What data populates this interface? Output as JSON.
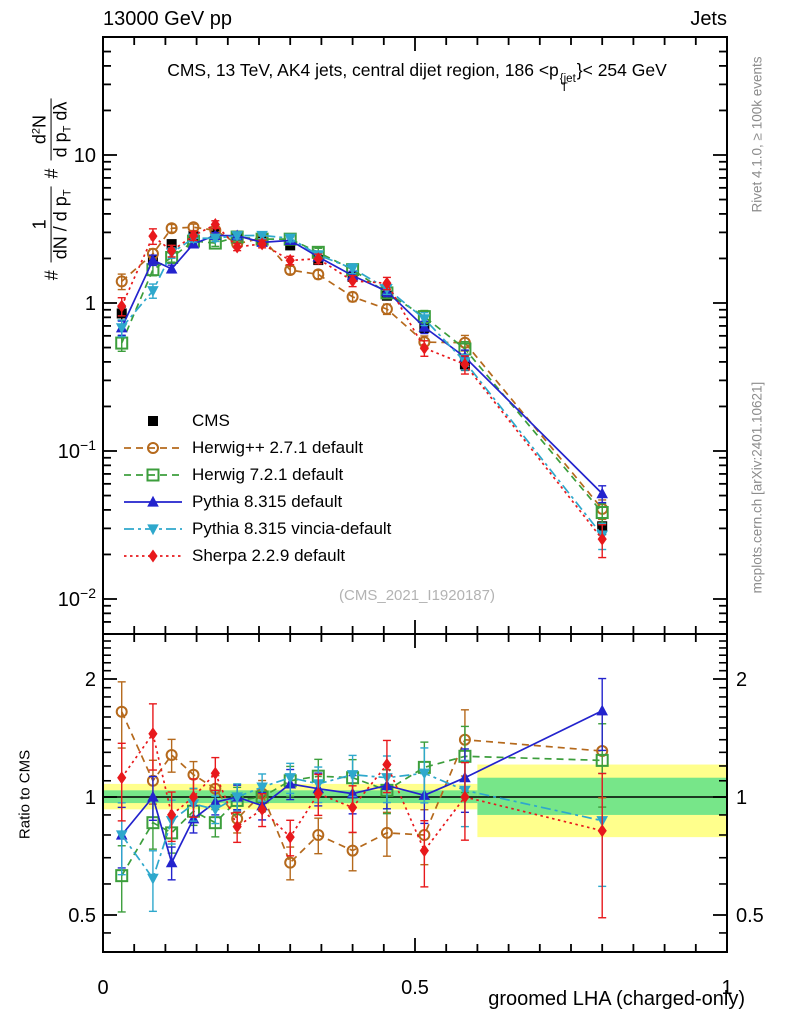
{
  "header": {
    "beam": "13000 GeV pp",
    "process": "Jets"
  },
  "title": {
    "pre": "CMS, 13 TeV, AK4 jets, central dijet region, 186 <p",
    "sup": "{jet",
    "sub": "T",
    "post": "}< 254 GeV"
  },
  "ylabel": {
    "hash1": "#",
    "f1num": "1",
    "f1den": "dN / d p",
    "f1den_sub": "T",
    "hash2": "#",
    "f2num_a": "d",
    "f2num_sup": "2",
    "f2num_b": "N",
    "f2den_a": "d p",
    "f2den_sub": "T",
    "f2den_b": " dλ"
  },
  "labels": {
    "ratio": "Ratio to CMS",
    "x": "groomed LHA (charged-only)",
    "watermark": "(CMS_2021_I1920187)"
  },
  "side": {
    "rivet": "Rivet 4.1.0, ≥ 100k events",
    "mcplots": "mcplots.cern.ch [arXiv:2401.10621]"
  },
  "chart_data": {
    "type": "line",
    "title": "CMS, 13 TeV, AK4 jets, central dijet region, 186 <p_T^{jet}< 254 GeV",
    "xlabel": "groomed LHA (charged-only)",
    "ylabel_main": "# 1/(dN/dp_T) # d^2N/(dp_T dlambda)",
    "ylabel_ratio": "Ratio to CMS",
    "x_range": [
      0,
      1
    ],
    "y_range_main_log": [
      0.006,
      60
    ],
    "y_range_ratio_log": [
      0.4,
      2.6
    ],
    "legend_position": "mid-left",
    "grid": false,
    "x": [
      0.03,
      0.08,
      0.11,
      0.145,
      0.18,
      0.215,
      0.255,
      0.3,
      0.345,
      0.4,
      0.455,
      0.515,
      0.58,
      0.8
    ],
    "axes": {
      "x_ticks": [
        {
          "v": 0,
          "label": "0"
        },
        {
          "v": 0.5,
          "label": "0.5"
        },
        {
          "v": 1,
          "label": "1"
        }
      ],
      "y_ticks_main": [
        {
          "v": 10,
          "base": "10",
          "exp": ""
        },
        {
          "v": 1,
          "base": "1",
          "exp": ""
        },
        {
          "v": 0.1,
          "base": "10",
          "exp": "−1"
        },
        {
          "v": 0.01,
          "base": "10",
          "exp": "−2"
        }
      ],
      "y_ticks_ratio": [
        {
          "v": 2,
          "label": "2"
        },
        {
          "v": 1,
          "label": "1"
        },
        {
          "v": 0.5,
          "label": "0.5"
        }
      ]
    },
    "band": {
      "yellow_color": "#ffff8c",
      "green_color": "#77e689",
      "segments": [
        {
          "x0": 0.0,
          "x1": 0.6,
          "yellow": [
            0.93,
            1.08
          ],
          "green": [
            0.965,
            1.04
          ]
        },
        {
          "x0": 0.6,
          "x1": 1.0,
          "yellow": [
            0.79,
            1.21
          ],
          "green": [
            0.9,
            1.12
          ]
        }
      ]
    },
    "series": [
      {
        "id": "cms",
        "name": "CMS",
        "color": "#000000",
        "marker": "sq-f",
        "line": "none",
        "dash": "",
        "values": [
          0.85,
          1.95,
          2.5,
          2.85,
          2.95,
          2.85,
          2.7,
          2.45,
          1.95,
          1.5,
          1.12,
          0.68,
          0.385,
          0.031
        ],
        "err": [
          0.1,
          0.05,
          0.04,
          0.04,
          0.035,
          0.035,
          0.035,
          0.04,
          0.045,
          0.05,
          0.06,
          0.07,
          0.09,
          0.12
        ],
        "ratio": null
      },
      {
        "id": "herwigpp",
        "name": "Herwig++ 2.7.1 default",
        "color": "#b5691c",
        "marker": "c-o",
        "line": "dash",
        "dash": "7,5",
        "values": [
          1.4,
          2.15,
          3.2,
          3.25,
          3.1,
          2.51,
          2.75,
          1.67,
          1.56,
          1.1,
          0.91,
          0.544,
          0.539,
          0.0406
        ],
        "ratio": [
          1.65,
          1.1,
          1.28,
          1.14,
          1.05,
          0.88,
          1.02,
          0.68,
          0.8,
          0.73,
          0.81,
          0.8,
          1.4,
          1.31
        ],
        "err": [
          0.12,
          0.08,
          0.06,
          0.05,
          0.05,
          0.05,
          0.05,
          0.06,
          0.065,
          0.07,
          0.08,
          0.1,
          0.12,
          0.15
        ]
      },
      {
        "id": "herwig7",
        "name": "Herwig 7.2.1 default",
        "color": "#3c9e3c",
        "marker": "sq-o",
        "line": "dash",
        "dash": "7,5",
        "values": [
          0.536,
          1.68,
          2.03,
          2.62,
          2.54,
          2.79,
          2.7,
          2.7,
          2.2,
          1.68,
          1.17,
          0.809,
          0.489,
          0.0384
        ],
        "ratio": [
          0.63,
          0.86,
          0.81,
          0.92,
          0.86,
          0.98,
          1.0,
          1.1,
          1.13,
          1.12,
          1.04,
          1.19,
          1.27,
          1.24
        ],
        "err": [
          0.12,
          0.09,
          0.07,
          0.05,
          0.05,
          0.05,
          0.05,
          0.055,
          0.065,
          0.07,
          0.08,
          0.1,
          0.12,
          0.15
        ]
      },
      {
        "id": "pythia",
        "name": "Pythia 8.315 default",
        "color": "#2323cd",
        "marker": "tu-f",
        "line": "solid",
        "dash": "",
        "values": [
          0.68,
          1.95,
          1.7,
          2.51,
          2.86,
          2.85,
          2.57,
          2.65,
          2.05,
          1.53,
          1.2,
          0.687,
          0.431,
          0.0515
        ],
        "ratio": [
          0.8,
          1.0,
          0.68,
          0.88,
          0.97,
          1.0,
          0.95,
          1.08,
          1.05,
          1.02,
          1.07,
          1.01,
          1.12,
          1.66
        ],
        "err": [
          0.11,
          0.08,
          0.06,
          0.05,
          0.045,
          0.045,
          0.05,
          0.055,
          0.06,
          0.07,
          0.08,
          0.095,
          0.115,
          0.13
        ]
      },
      {
        "id": "vincia",
        "name": "Pythia 8.315 vincia-default",
        "color": "#2ea8cc",
        "marker": "td-f",
        "line": "dashdot",
        "dash": "10,4,3,4",
        "values": [
          0.68,
          1.21,
          2.18,
          2.74,
          2.74,
          2.85,
          2.86,
          2.74,
          2.11,
          1.71,
          1.25,
          0.782,
          0.4,
          0.027
        ],
        "ratio": [
          0.8,
          0.62,
          0.87,
          0.96,
          0.93,
          1.0,
          1.06,
          1.12,
          1.08,
          1.14,
          1.12,
          1.15,
          1.04,
          0.87
        ],
        "err": [
          0.13,
          0.11,
          0.08,
          0.06,
          0.05,
          0.05,
          0.05,
          0.055,
          0.065,
          0.075,
          0.085,
          0.1,
          0.12,
          0.2
        ]
      },
      {
        "id": "sherpa",
        "name": "Sherpa 2.2.9 default",
        "color": "#e8191c",
        "marker": "di-f",
        "line": "dot",
        "dash": "2.5,3.5",
        "values": [
          0.952,
          2.83,
          2.25,
          2.85,
          3.39,
          2.39,
          2.51,
          1.94,
          1.99,
          1.41,
          1.36,
          0.496,
          0.385,
          0.0254
        ],
        "ratio": [
          1.12,
          1.45,
          0.9,
          1.0,
          1.15,
          0.84,
          0.93,
          0.79,
          1.02,
          0.94,
          1.21,
          0.73,
          1.0,
          0.82
        ],
        "err": [
          0.14,
          0.12,
          0.09,
          0.07,
          0.06,
          0.055,
          0.06,
          0.065,
          0.075,
          0.085,
          0.095,
          0.12,
          0.14,
          0.25
        ]
      }
    ]
  }
}
